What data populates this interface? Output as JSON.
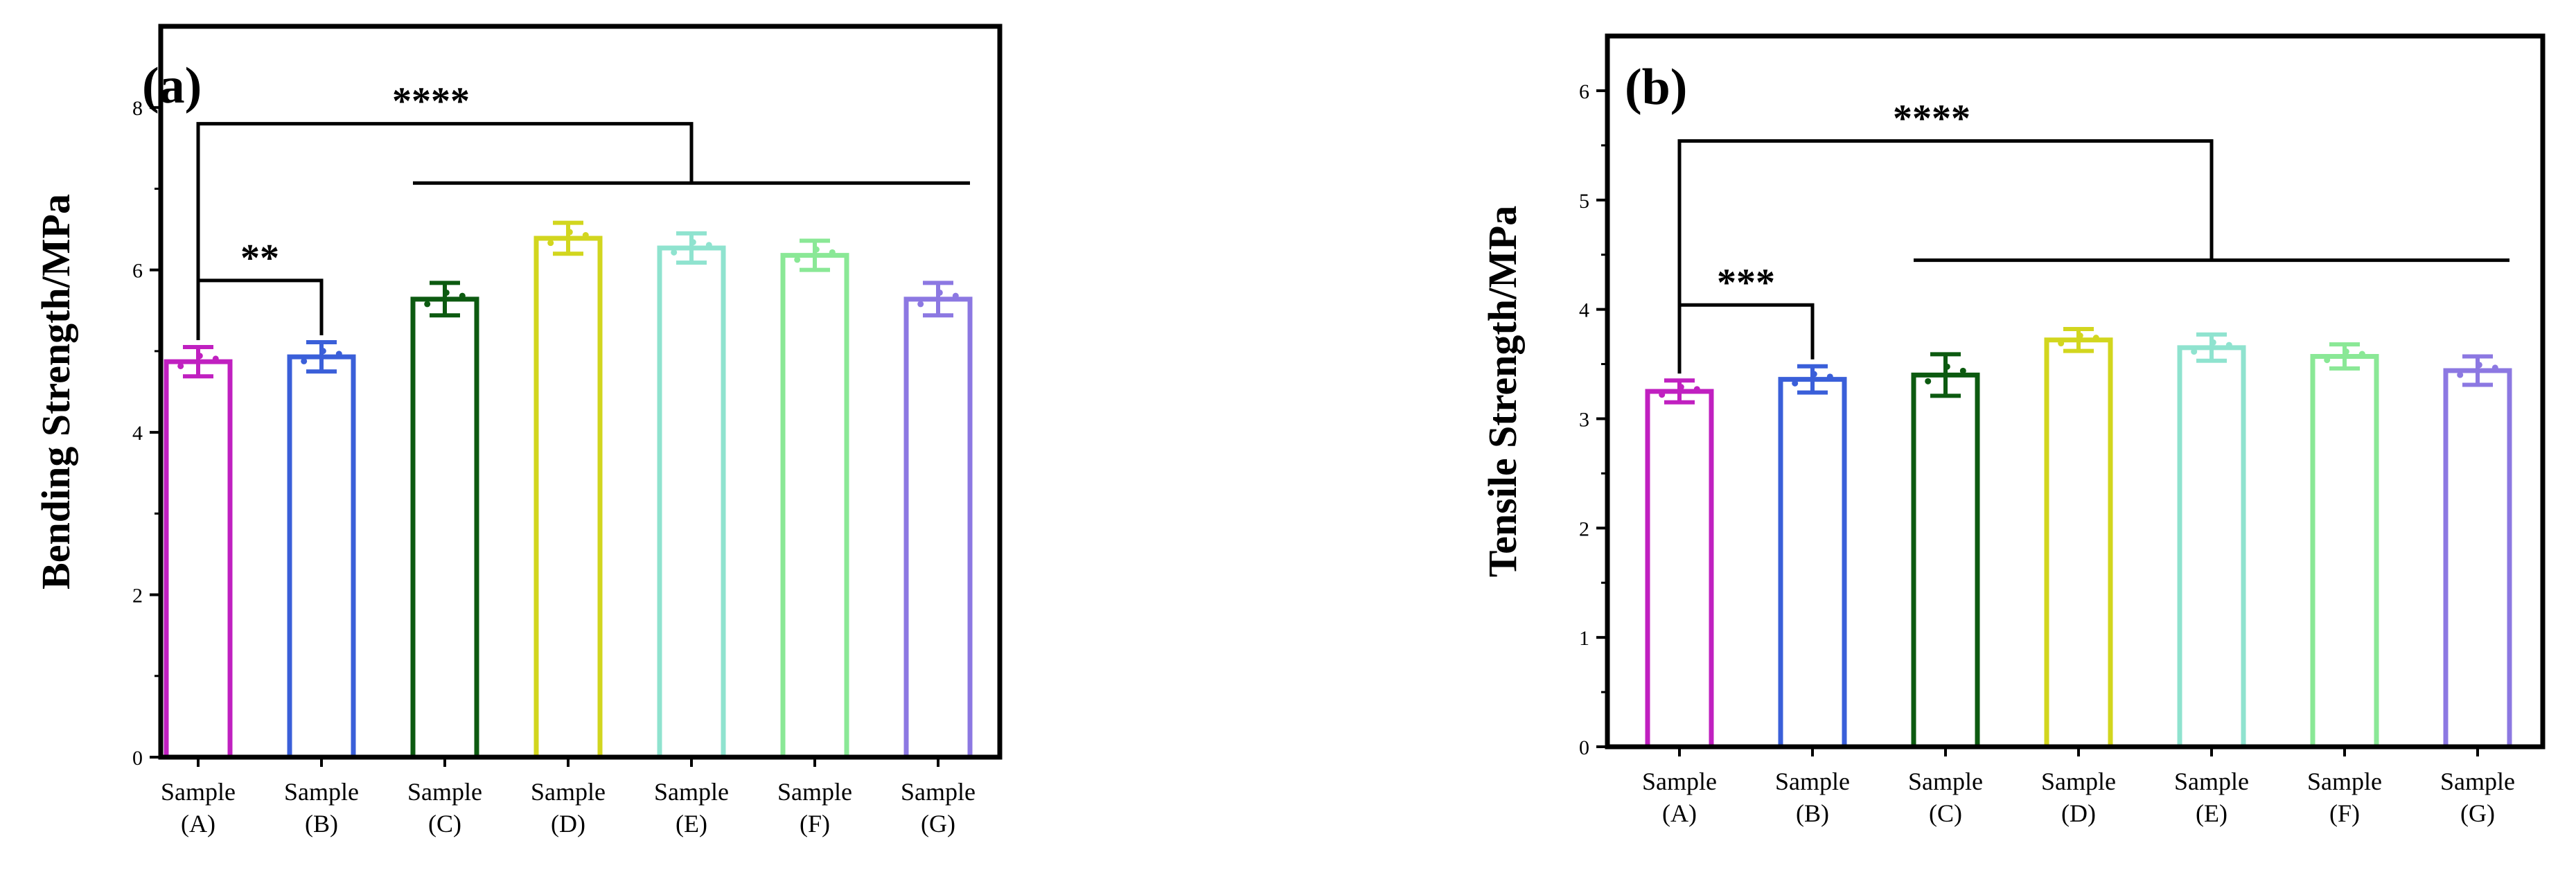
{
  "colors": [
    "#c020c0",
    "#3a5fd9",
    "#0c5a10",
    "#d2d61e",
    "#8fe3cf",
    "#8ae896",
    "#8c78e2"
  ],
  "chart_data": [
    {
      "type": "bar",
      "panel_label": "(a)",
      "ylabel": "Bending Strength/MPa",
      "xlabel": "",
      "categories": [
        {
          "line1": "Sample",
          "line2": "(A)"
        },
        {
          "line1": "Sample",
          "line2": "(B)"
        },
        {
          "line1": "Sample",
          "line2": "(C)"
        },
        {
          "line1": "Sample",
          "line2": "(D)"
        },
        {
          "line1": "Sample",
          "line2": "(E)"
        },
        {
          "line1": "Sample",
          "line2": "(F)"
        },
        {
          "line1": "Sample",
          "line2": "(G)"
        }
      ],
      "values": [
        4.87,
        4.93,
        5.64,
        6.39,
        6.27,
        6.18,
        5.64
      ],
      "errors": [
        0.18,
        0.18,
        0.2,
        0.19,
        0.18,
        0.18,
        0.2
      ],
      "ylim": [
        0,
        9
      ],
      "yticks": [
        0,
        2,
        4,
        6,
        8
      ],
      "brackets": [
        {
          "label": "**",
          "from": 0,
          "to": 1,
          "height": 5.87
        },
        {
          "label": "****",
          "from": 0,
          "to": 6,
          "group_start": 2,
          "height": 7.8,
          "group_height": 7.07
        }
      ]
    },
    {
      "type": "bar",
      "panel_label": "(b)",
      "ylabel": "Tensile Strength/MPa",
      "xlabel": "",
      "categories": [
        {
          "line1": "Sample",
          "line2": "(A)"
        },
        {
          "line1": "Sample",
          "line2": "(B)"
        },
        {
          "line1": "Sample",
          "line2": "(C)"
        },
        {
          "line1": "Sample",
          "line2": "(D)"
        },
        {
          "line1": "Sample",
          "line2": "(E)"
        },
        {
          "line1": "Sample",
          "line2": "(F)"
        },
        {
          "line1": "Sample",
          "line2": "(G)"
        }
      ],
      "values": [
        3.25,
        3.36,
        3.4,
        3.72,
        3.65,
        3.57,
        3.44
      ],
      "errors": [
        0.1,
        0.12,
        0.19,
        0.1,
        0.12,
        0.11,
        0.13
      ],
      "ylim": [
        0,
        6.5
      ],
      "yticks": [
        0,
        1,
        2,
        3,
        4,
        5,
        6
      ],
      "brackets": [
        {
          "label": "***",
          "from": 0,
          "to": 1,
          "height": 4.04
        },
        {
          "label": "****",
          "from": 0,
          "to": 6,
          "group_start": 2,
          "height": 5.54,
          "group_height": 4.45
        }
      ]
    }
  ]
}
